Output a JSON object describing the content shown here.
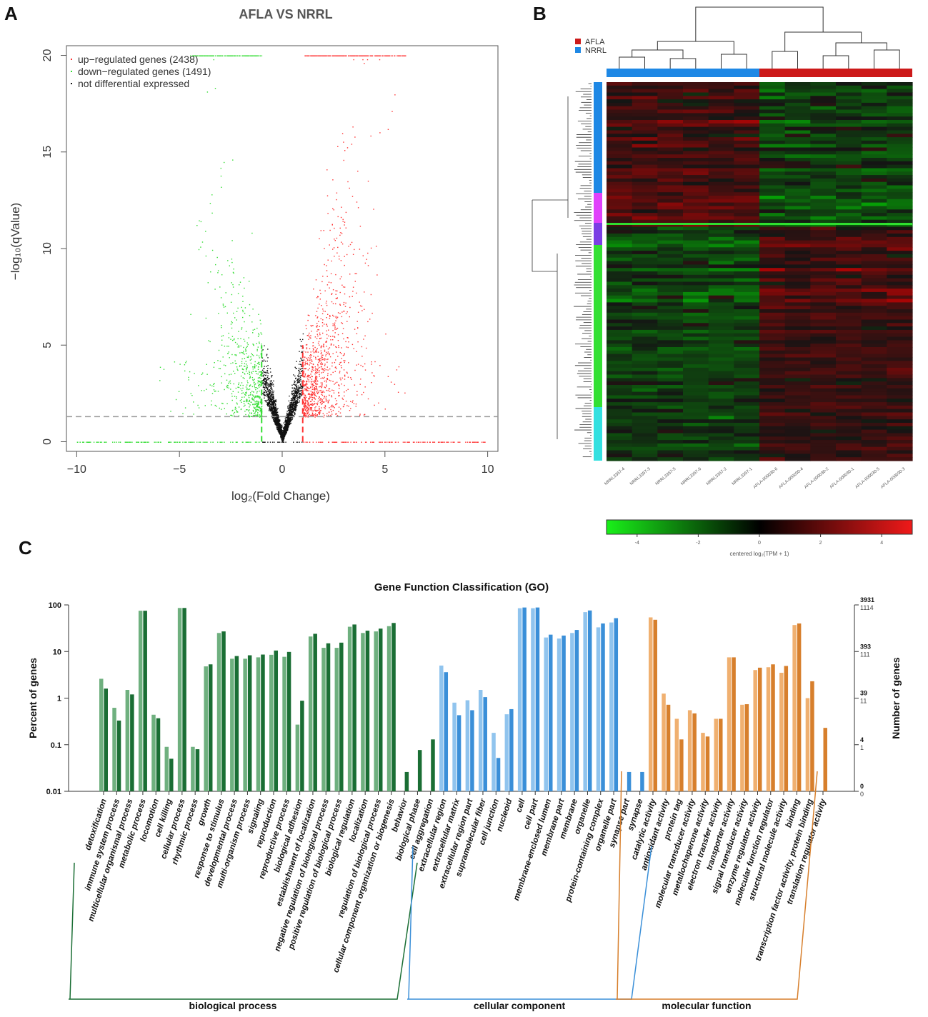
{
  "panels": {
    "a": "A",
    "b": "B",
    "c": "C"
  },
  "chart_data": [
    {
      "type": "scatter",
      "title": "AFLA VS NRRL",
      "xlabel": "log₂(Fold Change)",
      "ylabel": "−log₁₀(qValue)",
      "xlim": [
        -10.5,
        10.5
      ],
      "ylim": [
        -0.5,
        20.5
      ],
      "xticks": [
        "−10",
        "−5",
        "0",
        "5",
        "10"
      ],
      "xtick_values": [
        -10,
        -5,
        0,
        5,
        10
      ],
      "yticks": [
        "0",
        "5",
        "10",
        "15",
        "20"
      ],
      "ytick_values": [
        0,
        5,
        10,
        15,
        20
      ],
      "thresholds": {
        "qvalue_line": 1.3,
        "fc_lines": [
          -1,
          1
        ]
      },
      "series": [
        {
          "name": "up-regulated genes (2438)",
          "color": "#ff3333",
          "count": 2438
        },
        {
          "name": "down-regulated genes (1491)",
          "color": "#33dd33",
          "count": 1491
        },
        {
          "name": "not differential expressed",
          "color": "#111111"
        }
      ],
      "legend": [
        "up−regulated genes (2438)",
        "down−regulated genes (1491)",
        "not differential expressed"
      ]
    },
    {
      "type": "heatmap",
      "legend": [
        {
          "label": "AFLA",
          "color": "#cc1a1a"
        },
        {
          "label": "NRRL",
          "color": "#1e88e5"
        }
      ],
      "samples": [
        "NRRL3357-4",
        "NRRL3357-3",
        "NRRL3357-5",
        "NRRL3357-6",
        "NRRL3357-2",
        "NRRL3357-1",
        "AFLA-000030-6",
        "AFLA-000030-4",
        "AFLA-000030-2",
        "AFLA-000030-1",
        "AFLA-000030-5",
        "AFLA-000030-3"
      ],
      "cluster_colors": [
        "#1e88e5",
        "#e040fb",
        "#7b3fe4",
        "#33e033",
        "#33e0e0"
      ],
      "colorbar": {
        "ticks": [
          "-4",
          "-2",
          "0",
          "2",
          "4"
        ],
        "values": [
          -4,
          -2,
          0,
          2,
          4
        ],
        "min": -5,
        "max": 5,
        "label": "centered log₂(TPM + 1)"
      }
    },
    {
      "type": "bar",
      "title": "Gene Function Classification (GO)",
      "ylabel": "Percent of genes",
      "ylabel_right": "Number of genes",
      "yscale": "log",
      "ylim": [
        0.01,
        100
      ],
      "yticks_left": [
        "100",
        "10",
        "1",
        "0.1",
        "0.01"
      ],
      "yticks_right_a": [
        "3931",
        "393",
        "39",
        "4",
        "0"
      ],
      "yticks_right_b": [
        "1114",
        "111",
        "11",
        "1",
        "0"
      ],
      "categories": [
        {
          "name": "detoxification",
          "group": "bp",
          "light": 2.6,
          "dark": 1.6
        },
        {
          "name": "immune system process",
          "group": "bp",
          "light": 0.62,
          "dark": 0.33
        },
        {
          "name": "multicellular organismal process",
          "group": "bp",
          "light": 1.5,
          "dark": 1.2
        },
        {
          "name": "metabolic process",
          "group": "bp",
          "light": 75,
          "dark": 75
        },
        {
          "name": "locomotion",
          "group": "bp",
          "light": 0.44,
          "dark": 0.37
        },
        {
          "name": "cell killing",
          "group": "bp",
          "light": 0.09,
          "dark": 0.05
        },
        {
          "name": "cellular process",
          "group": "bp",
          "light": 86,
          "dark": 86
        },
        {
          "name": "rhythmic process",
          "group": "bp",
          "light": 0.09,
          "dark": 0.08
        },
        {
          "name": "growth",
          "group": "bp",
          "light": 4.8,
          "dark": 5.3
        },
        {
          "name": "response to stimulus",
          "group": "bp",
          "light": 25,
          "dark": 27
        },
        {
          "name": "developmental process",
          "group": "bp",
          "light": 7,
          "dark": 8
        },
        {
          "name": "multi-organism process",
          "group": "bp",
          "light": 7,
          "dark": 8.3
        },
        {
          "name": "signaling",
          "group": "bp",
          "light": 7.5,
          "dark": 8.6
        },
        {
          "name": "reproduction",
          "group": "bp",
          "light": 8.5,
          "dark": 10.5
        },
        {
          "name": "reproductive process",
          "group": "bp",
          "light": 7.7,
          "dark": 9.8
        },
        {
          "name": "biological adhesion",
          "group": "bp",
          "light": 0.27,
          "dark": 0.88
        },
        {
          "name": "establishment of localization",
          "group": "bp",
          "light": 21,
          "dark": 24
        },
        {
          "name": "negative regulation of biological process",
          "group": "bp",
          "light": 12,
          "dark": 15
        },
        {
          "name": "positive regulation of biological process",
          "group": "bp",
          "light": 12,
          "dark": 15.5
        },
        {
          "name": "biological regulation",
          "group": "bp",
          "light": 34,
          "dark": 38
        },
        {
          "name": "localization",
          "group": "bp",
          "light": 25,
          "dark": 28
        },
        {
          "name": "regulation of biological process",
          "group": "bp",
          "light": 27,
          "dark": 31
        },
        {
          "name": "cellular component organization or biogenesis",
          "group": "bp",
          "light": 35,
          "dark": 41
        },
        {
          "name": "behavior",
          "group": "bp",
          "light": null,
          "dark": 0.026
        },
        {
          "name": "biological phase",
          "group": "bp",
          "light": null,
          "dark": 0.077
        },
        {
          "name": "cell aggregation",
          "group": "bp",
          "light": null,
          "dark": 0.13
        },
        {
          "name": "extracellular region",
          "group": "cc",
          "light": 5,
          "dark": 3.6
        },
        {
          "name": "extracellular matrix",
          "group": "cc",
          "light": 0.8,
          "dark": 0.43
        },
        {
          "name": "extracellular region part",
          "group": "cc",
          "light": 0.9,
          "dark": 0.55
        },
        {
          "name": "supramolecular fiber",
          "group": "cc",
          "light": 1.5,
          "dark": 1.05
        },
        {
          "name": "cell junction",
          "group": "cc",
          "light": 0.18,
          "dark": 0.052
        },
        {
          "name": "nucleoid",
          "group": "cc",
          "light": 0.45,
          "dark": 0.58
        },
        {
          "name": "cell",
          "group": "cc",
          "light": 85,
          "dark": 88
        },
        {
          "name": "cell part",
          "group": "cc",
          "light": 85,
          "dark": 88
        },
        {
          "name": "membrane-enclosed lumen",
          "group": "cc",
          "light": 20,
          "dark": 23
        },
        {
          "name": "membrane part",
          "group": "cc",
          "light": 19,
          "dark": 22
        },
        {
          "name": "membrane",
          "group": "cc",
          "light": 25,
          "dark": 29
        },
        {
          "name": "organelle",
          "group": "cc",
          "light": 70,
          "dark": 76
        },
        {
          "name": "protein-containing complex",
          "group": "cc",
          "light": 33,
          "dark": 40
        },
        {
          "name": "organelle part",
          "group": "cc",
          "light": 42,
          "dark": 52
        },
        {
          "name": "synapse part",
          "group": "cc",
          "light": null,
          "dark": 0.026
        },
        {
          "name": "synapse",
          "group": "cc",
          "light": null,
          "dark": 0.026
        },
        {
          "name": "catalytic activity",
          "group": "mf",
          "light": 54,
          "dark": 48
        },
        {
          "name": "antioxidant activity",
          "group": "mf",
          "light": 1.25,
          "dark": 0.72
        },
        {
          "name": "protein tag",
          "group": "mf",
          "light": 0.36,
          "dark": 0.13
        },
        {
          "name": "molecular transducer activity",
          "group": "mf",
          "light": 0.55,
          "dark": 0.47
        },
        {
          "name": "metallochaperone activity",
          "group": "mf",
          "light": 0.18,
          "dark": 0.15
        },
        {
          "name": "electron transfer activity",
          "group": "mf",
          "light": 0.36,
          "dark": 0.36
        },
        {
          "name": "transporter activity",
          "group": "mf",
          "light": 7.5,
          "dark": 7.5
        },
        {
          "name": "signal transducer activity",
          "group": "mf",
          "light": 0.72,
          "dark": 0.74
        },
        {
          "name": "enzyme regulator activity",
          "group": "mf",
          "light": 4,
          "dark": 4.5
        },
        {
          "name": "molecular function regulator",
          "group": "mf",
          "light": 4.6,
          "dark": 5.3
        },
        {
          "name": "structural molecule activity",
          "group": "mf",
          "light": 3.5,
          "dark": 4.9
        },
        {
          "name": "binding",
          "group": "mf",
          "light": 37,
          "dark": 40
        },
        {
          "name": "transcription factor activity, protein binding",
          "group": "mf",
          "light": 1,
          "dark": 2.3
        },
        {
          "name": "translation regulator activity",
          "group": "mf",
          "light": null,
          "dark": 0.23
        }
      ],
      "groups": [
        {
          "id": "bp",
          "label": "biological process",
          "light": "#6fb07f",
          "dark": "#1a6e34"
        },
        {
          "id": "cc",
          "label": "cellular component",
          "light": "#90c4ee",
          "dark": "#3a8fd8"
        },
        {
          "id": "mf",
          "label": "molecular function",
          "light": "#f0b070",
          "dark": "#d77f2c"
        }
      ]
    }
  ]
}
